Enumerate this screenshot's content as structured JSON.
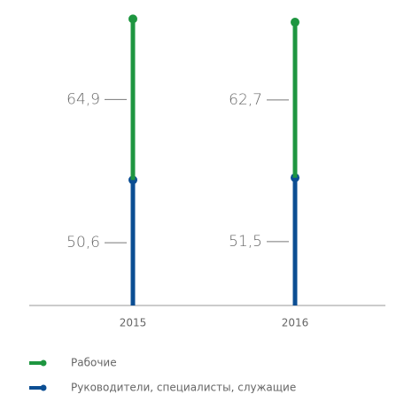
{
  "chart_data": {
    "type": "stacked_lollipop",
    "categories": [
      "2015",
      "2016"
    ],
    "series": [
      {
        "name": "Руководители, специалисты, служащие",
        "color": "#0b4e93",
        "values": [
          50.6,
          51.5
        ],
        "value_labels": [
          "50,6",
          "51,5"
        ]
      },
      {
        "name": "Рабочие",
        "color": "#1e9640",
        "values": [
          64.9,
          62.7
        ],
        "value_labels": [
          "64,9",
          "62,7"
        ]
      }
    ],
    "ylim": [
      0,
      116
    ]
  }
}
